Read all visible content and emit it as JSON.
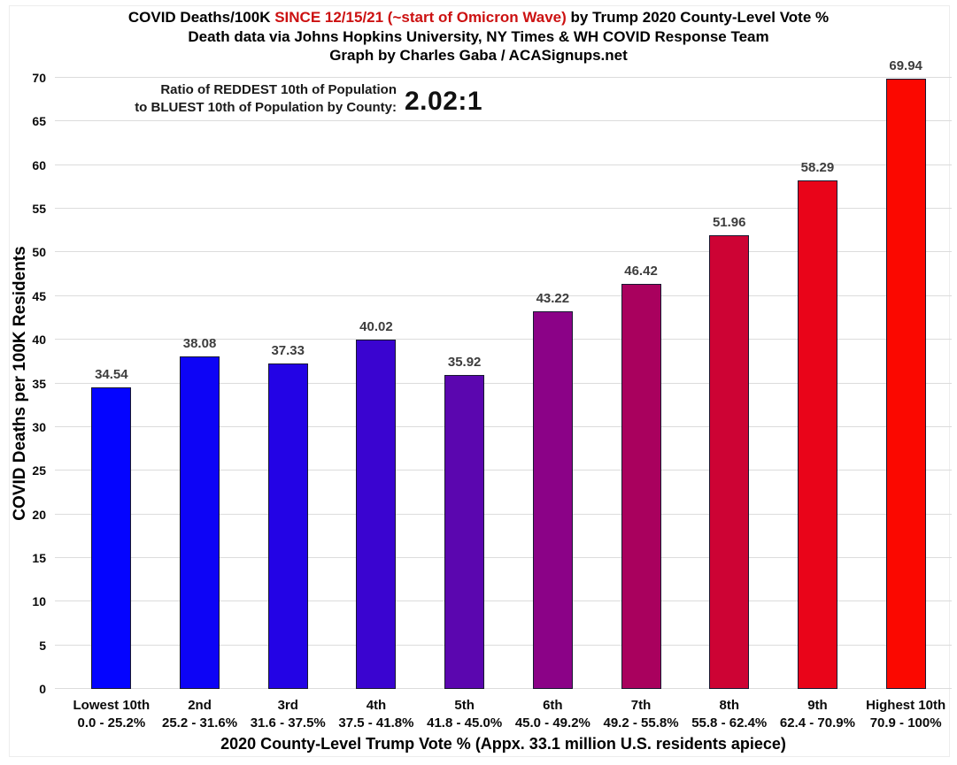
{
  "title": {
    "line1_before": "COVID Deaths/100K ",
    "line1_highlight": "SINCE 12/15/21 (~start of Omicron Wave)",
    "line1_after": " by Trump 2020 County-Level Vote %",
    "line2": "Death data via Johns Hopkins University, NY Times & WH COVID Response Team",
    "line3": "Graph by Charles Gaba / ACASignups.net",
    "highlight_color": "#cc1111"
  },
  "annotation": {
    "line1": "Ratio of REDDEST 10th of Population",
    "line2": "to BLUEST 10th of Population by County:",
    "ratio": "2.02:1"
  },
  "chart_data": {
    "type": "bar",
    "title": "COVID Deaths/100K SINCE 12/15/21 (~start of Omicron Wave) by Trump 2020 County-Level Vote %",
    "subtitle": "Death data via Johns Hopkins University, NY Times & WH COVID Response Team",
    "credit": "Graph by Charles Gaba / ACASignups.net",
    "categories": [
      "Lowest 10th",
      "2nd",
      "3rd",
      "4th",
      "5th",
      "6th",
      "7th",
      "8th",
      "9th",
      "Highest 10th"
    ],
    "category_ranges": [
      "0.0 - 25.2%",
      "25.2 - 31.6%",
      "31.6 - 37.5%",
      "37.5 - 41.8%",
      "41.8 - 45.0%",
      "45.0 - 49.2%",
      "49.2 - 55.8%",
      "55.8 - 62.4%",
      "62.4 - 70.9%",
      "70.9 - 100%"
    ],
    "values": [
      34.54,
      38.08,
      37.33,
      40.02,
      35.92,
      43.22,
      46.42,
      51.96,
      58.29,
      69.94
    ],
    "value_labels": [
      "34.54",
      "38.08",
      "37.33",
      "40.02",
      "35.92",
      "43.22",
      "46.42",
      "51.96",
      "58.29",
      "69.94"
    ],
    "bar_colors": [
      "#0404ff",
      "#0d04f6",
      "#2303e5",
      "#3a04d0",
      "#5b06af",
      "#8b0287",
      "#a9015e",
      "#cd0334",
      "#e90419",
      "#fb0800"
    ],
    "xlabel": "2020 County-Level Trump Vote % (Appx. 33.1 million U.S. residents apiece)",
    "ylabel": "COVID Deaths per 100K Residents",
    "ylim": [
      0,
      70
    ],
    "ytick_step": 5,
    "grid": true,
    "legend": "none"
  },
  "styles": {
    "grid_color": "#dcdcdc",
    "bar_border_color": "#181830",
    "value_label_color": "#3d3d3d",
    "background": "#ffffff"
  }
}
